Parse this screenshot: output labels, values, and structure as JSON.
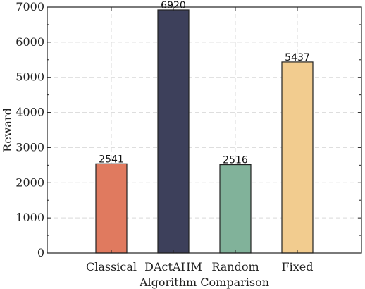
{
  "chart_data": {
    "type": "bar",
    "title": "",
    "xlabel": "Algorithm Comparison",
    "ylabel": "Reward",
    "categories": [
      "Classical",
      "DActAHM",
      "Random",
      "Fixed"
    ],
    "values": [
      2541,
      6920,
      2516,
      5437
    ],
    "value_labels": [
      "2541",
      "6920",
      "2516",
      "5437"
    ],
    "colors": [
      "#e07a5f",
      "#3d405b",
      "#81b29a",
      "#f2cc8f"
    ],
    "ylim": [
      0,
      7000
    ],
    "yticks": [
      0,
      1000,
      2000,
      3000,
      4000,
      5000,
      6000,
      7000
    ],
    "ytick_labels": [
      "0",
      "1000",
      "2000",
      "3000",
      "4000",
      "5000",
      "6000",
      "7000"
    ],
    "grid": true
  }
}
